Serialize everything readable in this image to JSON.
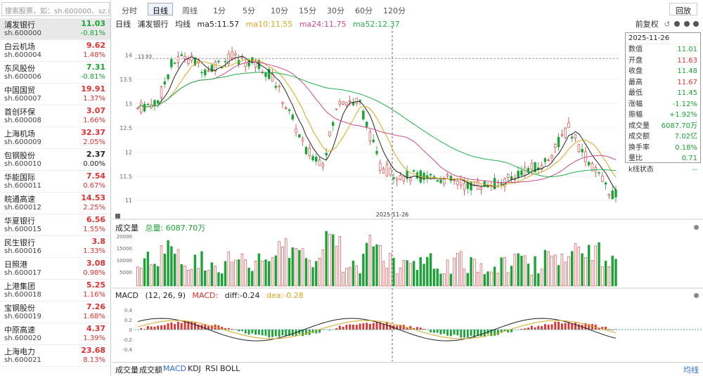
{
  "search": {
    "placeholder": "搜索股票，如：sh.600000、sz.00..."
  },
  "stocks": [
    {
      "name": "浦发银行",
      "code": "sh.600000",
      "price": "11.03",
      "change": "-0.81%",
      "dir": "down",
      "selected": true
    },
    {
      "name": "白云机场",
      "code": "sh.600004",
      "price": "9.62",
      "change": "1.48%",
      "dir": "up"
    },
    {
      "name": "东风股份",
      "code": "sh.600006",
      "price": "7.31",
      "change": "-0.81%",
      "dir": "down"
    },
    {
      "name": "中国国贸",
      "code": "sh.600007",
      "price": "19.91",
      "change": "1.37%",
      "dir": "up"
    },
    {
      "name": "首创环保",
      "code": "sh.600008",
      "price": "3.07",
      "change": "1.66%",
      "dir": "up"
    },
    {
      "name": "上海机场",
      "code": "sh.600009",
      "price": "32.37",
      "change": "2.05%",
      "dir": "up"
    },
    {
      "name": "包钢股份",
      "code": "sh.600010",
      "price": "2.37",
      "change": "0.00%",
      "dir": "flat"
    },
    {
      "name": "华能国际",
      "code": "sh.600011",
      "price": "7.54",
      "change": "0.67%",
      "dir": "up"
    },
    {
      "name": "皖通高速",
      "code": "sh.600012",
      "price": "14.53",
      "change": "2.25%",
      "dir": "up"
    },
    {
      "name": "华夏银行",
      "code": "sh.600015",
      "price": "6.56",
      "change": "1.55%",
      "dir": "up"
    },
    {
      "name": "民生银行",
      "code": "sh.600016",
      "price": "3.8",
      "change": "1.33%",
      "dir": "up"
    },
    {
      "name": "日照港",
      "code": "sh.600017",
      "price": "3.08",
      "change": "0.98%",
      "dir": "up"
    },
    {
      "name": "上港集团",
      "code": "sh.600018",
      "price": "5.25",
      "change": "1.16%",
      "dir": "up"
    },
    {
      "name": "宝钢股份",
      "code": "sh.600019",
      "price": "7.26",
      "change": "1.68%",
      "dir": "up"
    },
    {
      "name": "中原高速",
      "code": "sh.600020",
      "price": "4.37",
      "change": "1.39%",
      "dir": "up"
    },
    {
      "name": "上海电力",
      "code": "sh.600021",
      "price": "23.68",
      "change": "8.13%",
      "dir": "up"
    }
  ],
  "toolbar": {
    "periods": [
      "分时",
      "日线",
      "周线",
      "1分",
      "5分",
      "10分",
      "15分",
      "30分",
      "60分",
      "120分"
    ],
    "active": "日线",
    "replay": "回放"
  },
  "legend": {
    "period": "日线",
    "stock": "浦发银行",
    "ma_label": "均线",
    "ma5": "ma5:11.57",
    "ma10": "ma10:11.55",
    "ma24": "ma24:11.75",
    "ma52": "ma52:12.37",
    "fq": "前复权"
  },
  "colors": {
    "up": "#e03030",
    "down": "#1aa336",
    "ma5": "#222222",
    "ma10": "#d9a820",
    "ma24": "#d04a8c",
    "ma52": "#22b04b"
  },
  "info": {
    "date": "2025-11-26",
    "rows": [
      {
        "k": "数值",
        "v": "11.01",
        "c": "down"
      },
      {
        "k": "开盘",
        "v": "11.63",
        "c": "up"
      },
      {
        "k": "收盘",
        "v": "11.48",
        "c": "down"
      },
      {
        "k": "最高",
        "v": "11.67",
        "c": "up"
      },
      {
        "k": "最低",
        "v": "11.45",
        "c": "down"
      },
      {
        "k": "涨幅",
        "v": "-1.12%",
        "c": "down"
      },
      {
        "k": "振幅",
        "v": "+1.92%",
        "c": "down"
      },
      {
        "k": "成交量",
        "v": "6087.70万",
        "c": "down"
      },
      {
        "k": "成交额",
        "v": "7.02亿",
        "c": "down"
      },
      {
        "k": "换手率",
        "v": "0.18%",
        "c": "down"
      },
      {
        "k": "量比",
        "v": "0.71",
        "c": "down"
      },
      {
        "k": "k线状态",
        "v": "--",
        "c": "down"
      }
    ]
  },
  "price_axis": {
    "ticks": [
      "14",
      "13.5",
      "13",
      "12.5",
      "12",
      "11.5",
      "11"
    ],
    "ref_value": "13.93",
    "crosshair_date": "2025-11-26"
  },
  "volume": {
    "label": "成交量",
    "total_label": "总量: 6087.70万",
    "ticks": [
      "20000",
      "15000",
      "10000",
      "5000"
    ]
  },
  "macd": {
    "label": "MACD",
    "params": "(12, 26, 9)",
    "macd_label": "MACD:",
    "diff": "diff:-0.24",
    "dea": "dea:-0.28",
    "ticks": [
      "0.4",
      "0.2",
      "0",
      "-0.2",
      "-0.4"
    ]
  },
  "bottom_tabs": {
    "items": [
      "成交量",
      "成交额",
      "MACD",
      "KDJ",
      "RSI",
      "BOLL"
    ],
    "active": "MACD",
    "ma_button": "均线"
  },
  "chart_data": {
    "type": "candlestick",
    "note": "",
    "candles": []
  }
}
